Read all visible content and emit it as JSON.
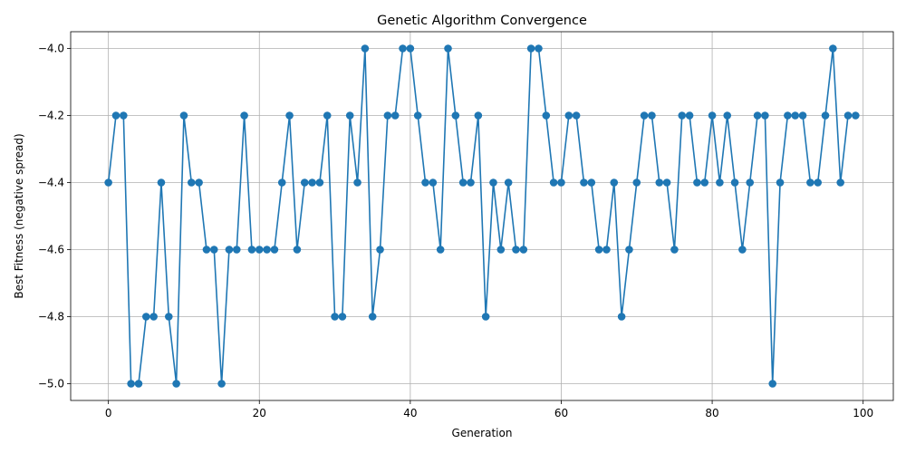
{
  "chart_data": {
    "type": "line",
    "title": "Genetic Algorithm Convergence",
    "xlabel": "Generation",
    "ylabel": "Best Fitness (negative spread)",
    "xlim": [
      -5,
      104
    ],
    "ylim": [
      -5.05,
      -3.95
    ],
    "xticks": [
      0,
      20,
      40,
      60,
      80,
      100
    ],
    "xtick_labels": [
      "0",
      "20",
      "40",
      "60",
      "80",
      "100"
    ],
    "yticks": [
      -5.0,
      -4.8,
      -4.6,
      -4.4,
      -4.2,
      -4.0
    ],
    "ytick_labels": [
      "−5.0",
      "−4.8",
      "−4.6",
      "−4.4",
      "−4.2",
      "−4.0"
    ],
    "grid": true,
    "marker": "circle",
    "color": "#1f77b4",
    "x": [
      0,
      1,
      2,
      3,
      4,
      5,
      6,
      7,
      8,
      9,
      10,
      11,
      12,
      13,
      14,
      15,
      16,
      17,
      18,
      19,
      20,
      21,
      22,
      23,
      24,
      25,
      26,
      27,
      28,
      29,
      30,
      31,
      32,
      33,
      34,
      35,
      36,
      37,
      38,
      39,
      40,
      41,
      42,
      43,
      44,
      45,
      46,
      47,
      48,
      49,
      50,
      51,
      52,
      53,
      54,
      55,
      56,
      57,
      58,
      59,
      60,
      61,
      62,
      63,
      64,
      65,
      66,
      67,
      68,
      69,
      70,
      71,
      72,
      73,
      74,
      75,
      76,
      77,
      78,
      79,
      80,
      81,
      82,
      83,
      84,
      85,
      86,
      87,
      88,
      89,
      90,
      91,
      92,
      93,
      94,
      95,
      96,
      97,
      98,
      99
    ],
    "y": [
      -4.4,
      -4.2,
      -4.2,
      -5.0,
      -5.0,
      -4.8,
      -4.8,
      -4.4,
      -4.8,
      -5.0,
      -4.2,
      -4.4,
      -4.4,
      -4.6,
      -4.6,
      -5.0,
      -4.6,
      -4.6,
      -4.2,
      -4.6,
      -4.6,
      -4.6,
      -4.6,
      -4.4,
      -4.2,
      -4.6,
      -4.4,
      -4.4,
      -4.4,
      -4.2,
      -4.8,
      -4.8,
      -4.2,
      -4.4,
      -4.0,
      -4.8,
      -4.6,
      -4.2,
      -4.2,
      -4.0,
      -4.0,
      -4.2,
      -4.4,
      -4.4,
      -4.6,
      -4.0,
      -4.2,
      -4.4,
      -4.4,
      -4.2,
      -4.8,
      -4.4,
      -4.6,
      -4.4,
      -4.6,
      -4.6,
      -4.0,
      -4.0,
      -4.2,
      -4.4,
      -4.4,
      -4.2,
      -4.2,
      -4.4,
      -4.4,
      -4.6,
      -4.6,
      -4.4,
      -4.8,
      -4.6,
      -4.4,
      -4.2,
      -4.2,
      -4.4,
      -4.4,
      -4.6,
      -4.2,
      -4.2,
      -4.4,
      -4.4,
      -4.2,
      -4.4,
      -4.2,
      -4.4,
      -4.6,
      -4.4,
      -4.2,
      -4.2,
      -5.0,
      -4.4,
      -4.2,
      -4.2,
      -4.2,
      -4.4,
      -4.4,
      -4.2,
      -4.0,
      -4.4,
      -4.2,
      -4.2
    ]
  }
}
